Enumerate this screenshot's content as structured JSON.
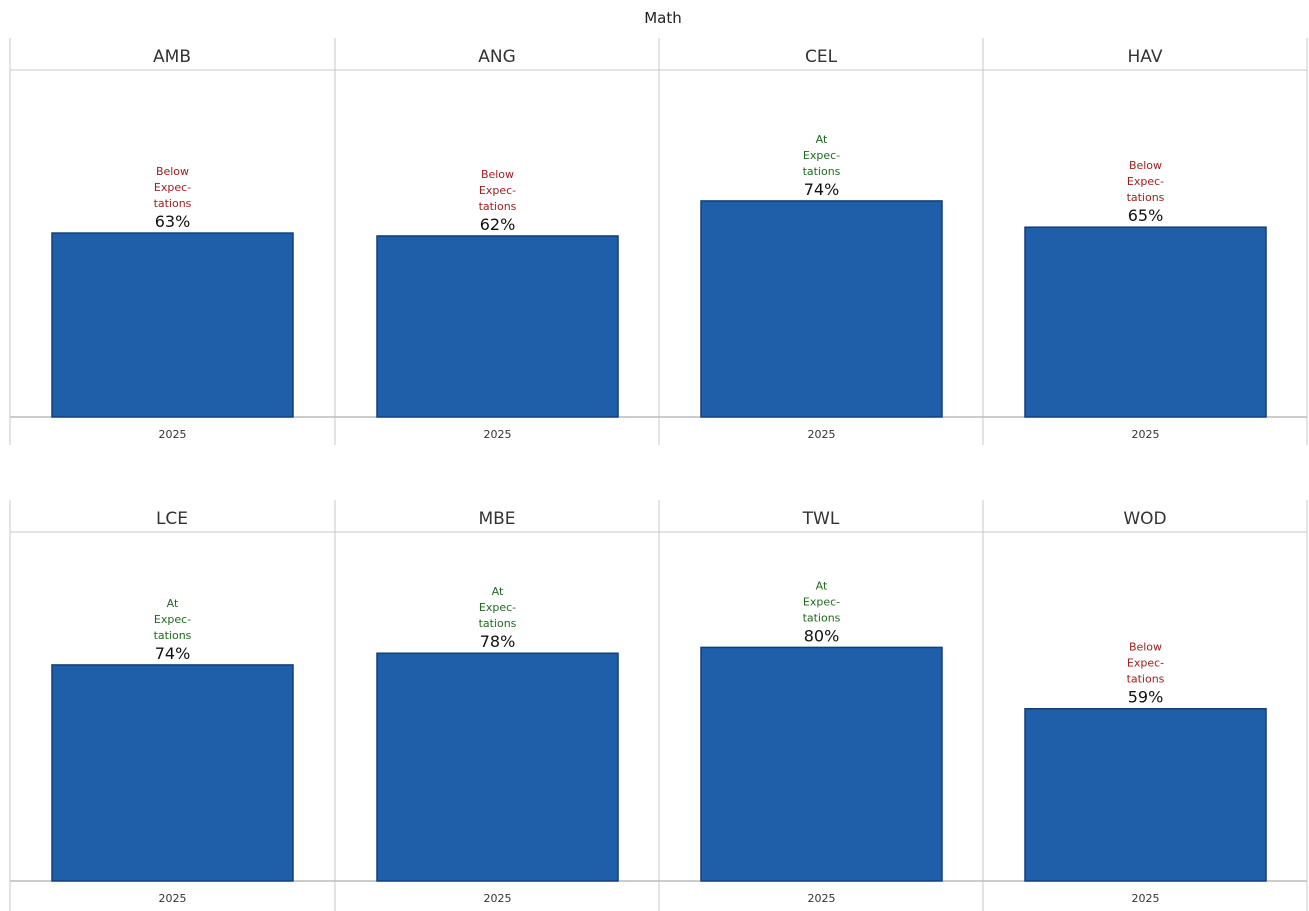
{
  "chart_data": {
    "type": "bar",
    "title": "Math",
    "ylim": [
      0,
      100
    ],
    "grid": false,
    "bar_color": "#1f5ea8",
    "status_colors": {
      "Below": "#9e1c1c",
      "At": "#1e6b1e"
    },
    "panels": [
      {
        "name": "AMB",
        "categories": [
          "2025"
        ],
        "values": [
          63
        ],
        "value_label": "63%",
        "status": "Below",
        "status_lines": [
          "Below",
          "Expec-",
          "tations"
        ]
      },
      {
        "name": "ANG",
        "categories": [
          "2025"
        ],
        "values": [
          62
        ],
        "value_label": "62%",
        "status": "Below",
        "status_lines": [
          "Below",
          "Expec-",
          "tations"
        ]
      },
      {
        "name": "CEL",
        "categories": [
          "2025"
        ],
        "values": [
          74
        ],
        "value_label": "74%",
        "status": "At",
        "status_lines": [
          "At",
          "Expec-",
          "tations"
        ]
      },
      {
        "name": "HAV",
        "categories": [
          "2025"
        ],
        "values": [
          65
        ],
        "value_label": "65%",
        "status": "Below",
        "status_lines": [
          "Below",
          "Expec-",
          "tations"
        ]
      },
      {
        "name": "LCE",
        "categories": [
          "2025"
        ],
        "values": [
          74
        ],
        "value_label": "74%",
        "status": "At",
        "status_lines": [
          "At",
          "Expec-",
          "tations"
        ]
      },
      {
        "name": "MBE",
        "categories": [
          "2025"
        ],
        "values": [
          78
        ],
        "value_label": "78%",
        "status": "At",
        "status_lines": [
          "At",
          "Expec-",
          "tations"
        ]
      },
      {
        "name": "TWL",
        "categories": [
          "2025"
        ],
        "values": [
          80
        ],
        "value_label": "80%",
        "status": "At",
        "status_lines": [
          "At",
          "Expec-",
          "tations"
        ]
      },
      {
        "name": "WOD",
        "categories": [
          "2025"
        ],
        "values": [
          59
        ],
        "value_label": "59%",
        "status": "Below",
        "status_lines": [
          "Below",
          "Expec-",
          "tations"
        ]
      }
    ]
  }
}
